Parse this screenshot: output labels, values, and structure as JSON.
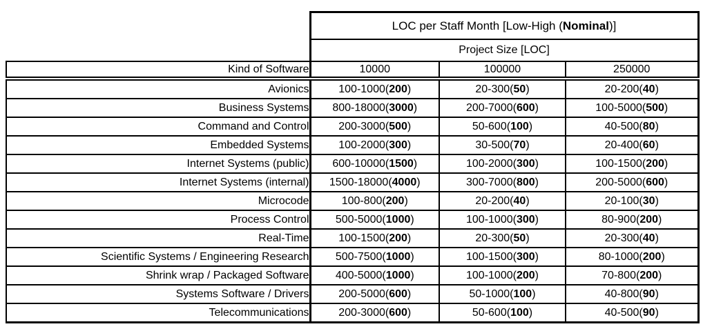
{
  "colors": {
    "ink": "#000000",
    "background": "#ffffff"
  },
  "table": {
    "title": {
      "prefix": "LOC per Staff Month [Low-High (",
      "bold": "Nominal",
      "suffix": ")]"
    },
    "subtitle": "Project Size [LOC]",
    "kind_header": "Kind of Software",
    "size_headers": [
      "10000",
      "100000",
      "250000"
    ],
    "rows": [
      {
        "kind": "Avionics",
        "values": [
          {
            "low": 100,
            "high": 1000,
            "nominal": 200
          },
          {
            "low": 20,
            "high": 300,
            "nominal": 50
          },
          {
            "low": 20,
            "high": 200,
            "nominal": 40
          }
        ]
      },
      {
        "kind": "Business Systems",
        "values": [
          {
            "low": 800,
            "high": 18000,
            "nominal": 3000
          },
          {
            "low": 200,
            "high": 7000,
            "nominal": 600
          },
          {
            "low": 100,
            "high": 5000,
            "nominal": 500
          }
        ]
      },
      {
        "kind": "Command and Control",
        "values": [
          {
            "low": 200,
            "high": 3000,
            "nominal": 500
          },
          {
            "low": 50,
            "high": 600,
            "nominal": 100
          },
          {
            "low": 40,
            "high": 500,
            "nominal": 80
          }
        ]
      },
      {
        "kind": "Embedded Systems",
        "values": [
          {
            "low": 100,
            "high": 2000,
            "nominal": 300
          },
          {
            "low": 30,
            "high": 500,
            "nominal": 70
          },
          {
            "low": 20,
            "high": 400,
            "nominal": 60
          }
        ]
      },
      {
        "kind": "Internet Systems (public)",
        "values": [
          {
            "low": 600,
            "high": 10000,
            "nominal": 1500
          },
          {
            "low": 100,
            "high": 2000,
            "nominal": 300
          },
          {
            "low": 100,
            "high": 1500,
            "nominal": 200
          }
        ]
      },
      {
        "kind": "Internet Systems (internal)",
        "values": [
          {
            "low": 1500,
            "high": 18000,
            "nominal": 4000
          },
          {
            "low": 300,
            "high": 7000,
            "nominal": 800
          },
          {
            "low": 200,
            "high": 5000,
            "nominal": 600
          }
        ]
      },
      {
        "kind": "Microcode",
        "values": [
          {
            "low": 100,
            "high": 800,
            "nominal": 200
          },
          {
            "low": 20,
            "high": 200,
            "nominal": 40
          },
          {
            "low": 20,
            "high": 100,
            "nominal": 30
          }
        ]
      },
      {
        "kind": "Process Control",
        "values": [
          {
            "low": 500,
            "high": 5000,
            "nominal": 1000
          },
          {
            "low": 100,
            "high": 1000,
            "nominal": 300
          },
          {
            "low": 80,
            "high": 900,
            "nominal": 200
          }
        ]
      },
      {
        "kind": "Real-Time",
        "values": [
          {
            "low": 100,
            "high": 1500,
            "nominal": 200
          },
          {
            "low": 20,
            "high": 300,
            "nominal": 50
          },
          {
            "low": 20,
            "high": 300,
            "nominal": 40
          }
        ]
      },
      {
        "kind": "Scientific Systems / Engineering Research",
        "values": [
          {
            "low": 500,
            "high": 7500,
            "nominal": 1000
          },
          {
            "low": 100,
            "high": 1500,
            "nominal": 300
          },
          {
            "low": 80,
            "high": 1000,
            "nominal": 200
          }
        ]
      },
      {
        "kind": "Shrink wrap / Packaged Software",
        "values": [
          {
            "low": 400,
            "high": 5000,
            "nominal": 1000
          },
          {
            "low": 100,
            "high": 1000,
            "nominal": 200
          },
          {
            "low": 70,
            "high": 800,
            "nominal": 200
          }
        ]
      },
      {
        "kind": "Systems Software / Drivers",
        "values": [
          {
            "low": 200,
            "high": 5000,
            "nominal": 600
          },
          {
            "low": 50,
            "high": 1000,
            "nominal": 100
          },
          {
            "low": 40,
            "high": 800,
            "nominal": 90
          }
        ]
      },
      {
        "kind": "Telecommunications",
        "values": [
          {
            "low": 200,
            "high": 3000,
            "nominal": 600
          },
          {
            "low": 50,
            "high": 600,
            "nominal": 100
          },
          {
            "low": 40,
            "high": 500,
            "nominal": 90
          }
        ]
      }
    ]
  }
}
